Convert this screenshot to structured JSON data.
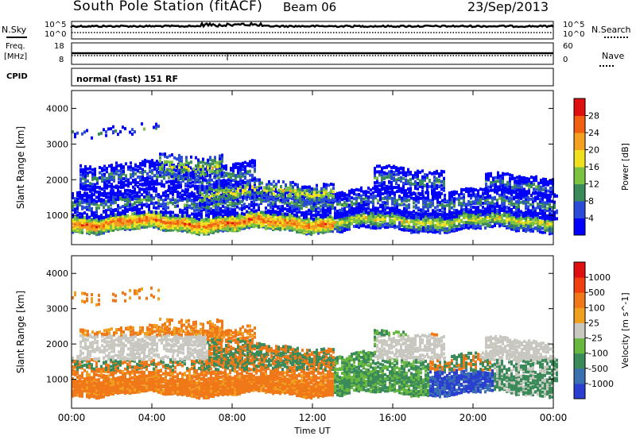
{
  "header": {
    "station_title": "South Pole Station (fitACF)",
    "beam": "Beam 06",
    "date": "23/Sep/2013"
  },
  "side_labels": {
    "nsky": "N.Sky",
    "nsearch": "N.Search",
    "freq_line1": "Freq.",
    "freq_line2": "[MHz]",
    "nave": "Nave",
    "cpid": "CPID"
  },
  "top_axes": {
    "nsky_ticks": [
      "10^5",
      "10^0"
    ],
    "nsearch_ticks": [
      "10^5",
      "10^0"
    ],
    "freq_ticks": [
      "18",
      "8"
    ],
    "nave_ticks": [
      "60",
      "0"
    ]
  },
  "cpid_text": "normal (fast) 151 RF",
  "colors": {
    "power_scale": [
      "#0000ff",
      "#2a4bd7",
      "#3a8a5a",
      "#7bc243",
      "#f0e020",
      "#f4a020",
      "#f06010",
      "#e01010"
    ],
    "velocity_scale": [
      "#2a3fd0",
      "#3a6fb0",
      "#3a8a5a",
      "#68b840",
      "#c8c8c0",
      "#f0a020",
      "#f07818",
      "#f04010",
      "#e01010"
    ]
  },
  "chart_data": [
    {
      "type": "heatmap",
      "title": "",
      "xlabel": "Time UT",
      "ylabel": "Slant Range [km]",
      "x_ticks": [
        "00:00",
        "04:00",
        "08:00",
        "12:00",
        "16:00",
        "20:00",
        "00:00"
      ],
      "y_ticks": [
        "1000",
        "2000",
        "3000",
        "4000"
      ],
      "ylim": [
        180,
        4500
      ],
      "colorbar": {
        "label": "Power [dB]",
        "ticks": [
          "4",
          "8",
          "12",
          "16",
          "20",
          "24",
          "28"
        ],
        "range": [
          0,
          30
        ]
      },
      "grid": false
    },
    {
      "type": "heatmap",
      "title": "",
      "xlabel": "Time UT",
      "ylabel": "Slant Range [km]",
      "x_ticks": [
        "00:00",
        "04:00",
        "08:00",
        "12:00",
        "16:00",
        "20:00",
        "00:00"
      ],
      "y_ticks": [
        "1000",
        "2000",
        "3000",
        "4000"
      ],
      "ylim": [
        180,
        4500
      ],
      "colorbar": {
        "label": "Velocity [m s^-1]",
        "ticks": [
          "1000",
          "500",
          "100",
          "25",
          "-25",
          "-100",
          "-500",
          "-1000"
        ]
      },
      "grid": false
    }
  ]
}
